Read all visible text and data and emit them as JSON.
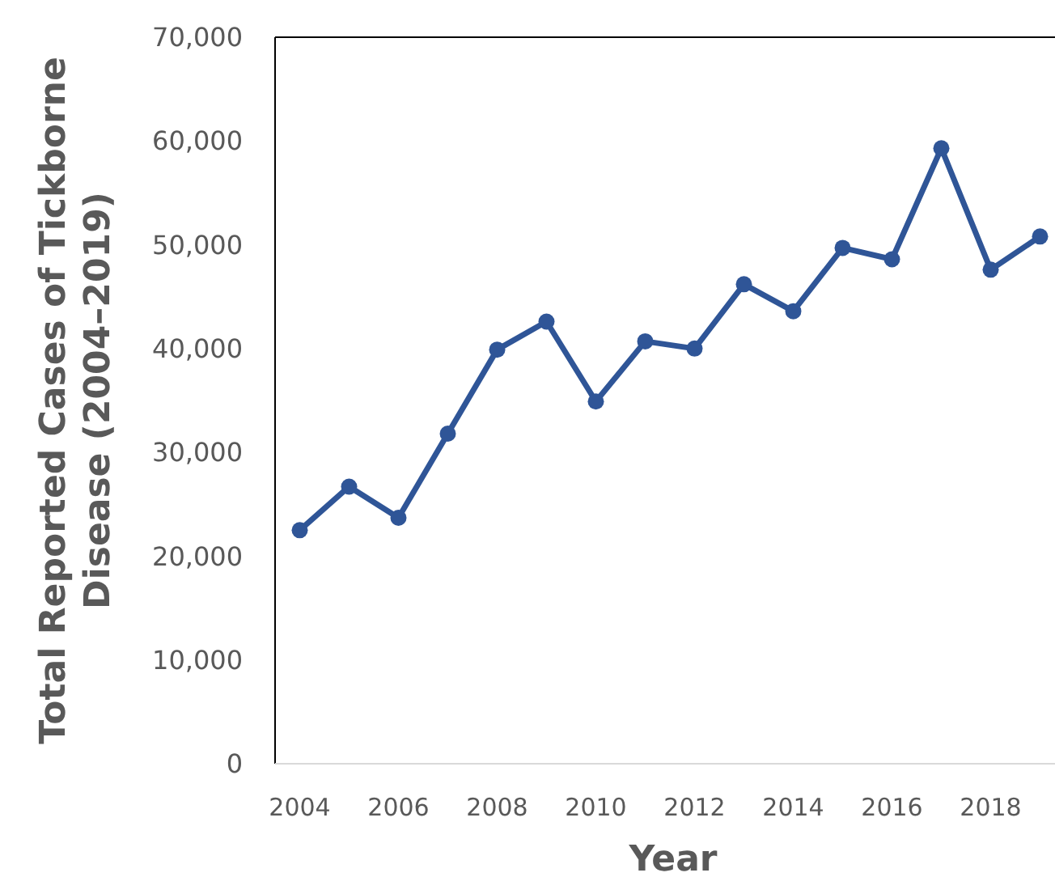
{
  "chart_data": {
    "type": "line",
    "xlabel": "Year",
    "ylabel": "Total Reported Cases of Tickborne Disease (2004–2019)",
    "categories": [
      "2004",
      null,
      "2006",
      null,
      "2008",
      null,
      "2010",
      null,
      "2012",
      null,
      "2014",
      null,
      "2016",
      null,
      "2018",
      null
    ],
    "series": [
      {
        "color": "#2f5597",
        "values": [
          22500,
          26700,
          23700,
          31800,
          39900,
          42600,
          34900,
          40700,
          40000,
          46200,
          43600,
          49700,
          48600,
          59300,
          47600,
          50800
        ]
      }
    ],
    "ylim": [
      0,
      70000
    ],
    "yticks": [
      {
        "value": 0,
        "label": "0"
      },
      {
        "value": 10000,
        "label": "10,000"
      },
      {
        "value": 20000,
        "label": "20,000"
      },
      {
        "value": 30000,
        "label": "30,000"
      },
      {
        "value": 40000,
        "label": "40,000"
      },
      {
        "value": 50000,
        "label": "50,000"
      },
      {
        "value": 60000,
        "label": "60,000"
      },
      {
        "value": 70000,
        "label": "70,000"
      }
    ],
    "grid": false,
    "marker": "circle",
    "line_style": "solid"
  }
}
